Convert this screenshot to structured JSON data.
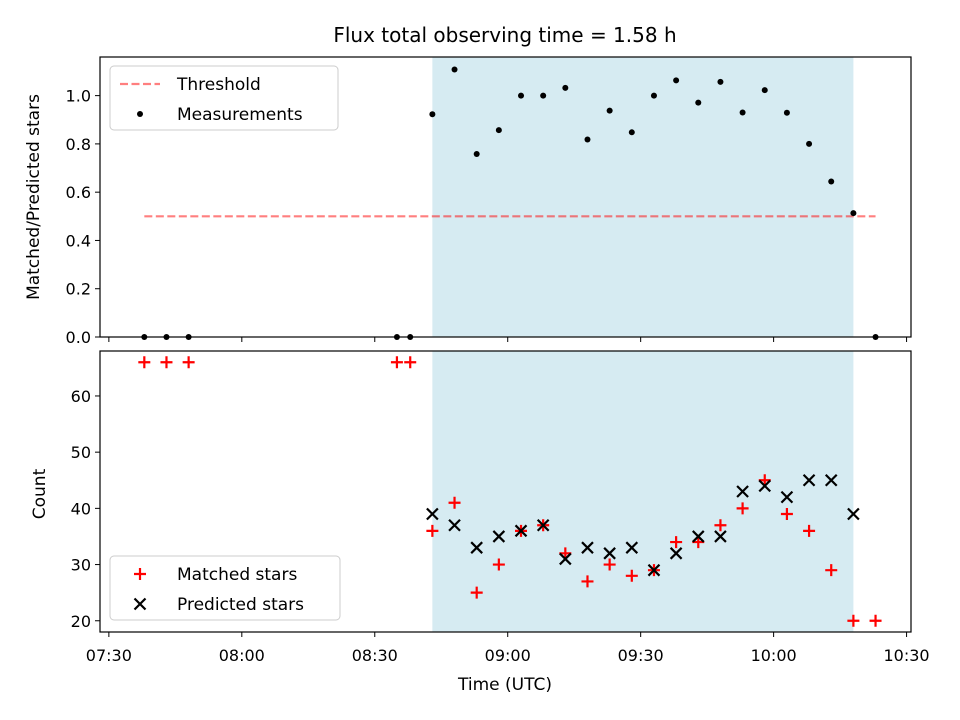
{
  "chart_data": {
    "type": "scatter",
    "title": "Flux total observing time = 1.58 h",
    "xlabel": "Time (UTC)",
    "x_ticks": [
      "07:30",
      "08:00",
      "08:30",
      "09:00",
      "09:30",
      "10:00",
      "10:30"
    ],
    "x_range": [
      "07:28",
      "10:31"
    ],
    "shaded_span": [
      "08:43",
      "10:18"
    ],
    "colors": {
      "shade": "#add8e6",
      "threshold": "#ff0000",
      "matched": "#ff0000",
      "predicted": "#000000",
      "measurements": "#000000"
    },
    "panels": [
      {
        "name": "ratio",
        "ylabel": "Matched/Predicted stars",
        "ylim": [
          0,
          1.16
        ],
        "y_ticks": [
          "0.0",
          "0.2",
          "0.4",
          "0.6",
          "0.8",
          "1.0"
        ],
        "legend_position": "upper left",
        "series": [
          {
            "name": "Threshold",
            "kind": "dashed-line",
            "x": [
              "07:38",
              "10:23"
            ],
            "y": [
              0.5,
              0.5
            ]
          },
          {
            "name": "Measurements",
            "kind": "dot",
            "x": [
              "07:38",
              "07:43",
              "07:48",
              "08:35",
              "08:38",
              "08:43",
              "08:48",
              "08:53",
              "08:58",
              "09:03",
              "09:08",
              "09:13",
              "09:18",
              "09:23",
              "09:28",
              "09:33",
              "09:38",
              "09:43",
              "09:48",
              "09:53",
              "09:58",
              "10:03",
              "10:08",
              "10:13",
              "10:18",
              "10:23"
            ],
            "y": [
              0,
              0,
              0,
              0,
              0,
              0.923,
              1.108,
              0.758,
              0.857,
              1.0,
              1.0,
              1.032,
              0.818,
              0.938,
              0.848,
              1.0,
              1.063,
              0.971,
              1.057,
              0.93,
              1.023,
              0.929,
              0.8,
              0.644,
              0.513,
              0
            ]
          }
        ]
      },
      {
        "name": "count",
        "ylabel": "Count",
        "ylim": [
          18,
          68
        ],
        "y_ticks": [
          "20",
          "30",
          "40",
          "50",
          "60"
        ],
        "legend_position": "lower left",
        "series": [
          {
            "name": "Matched stars",
            "kind": "plus",
            "x": [
              "07:38",
              "07:43",
              "07:48",
              "08:35",
              "08:38",
              "08:43",
              "08:48",
              "08:53",
              "08:58",
              "09:03",
              "09:08",
              "09:13",
              "09:18",
              "09:23",
              "09:28",
              "09:33",
              "09:38",
              "09:43",
              "09:48",
              "09:53",
              "09:58",
              "10:03",
              "10:08",
              "10:13",
              "10:18",
              "10:23"
            ],
            "y": [
              66,
              66,
              66,
              66,
              66,
              36,
              41,
              25,
              30,
              36,
              37,
              32,
              27,
              30,
              28,
              29,
              34,
              34,
              37,
              40,
              45,
              39,
              36,
              29,
              20,
              20
            ]
          },
          {
            "name": "Predicted stars",
            "kind": "cross",
            "x": [
              "08:43",
              "08:48",
              "08:53",
              "08:58",
              "09:03",
              "09:08",
              "09:13",
              "09:18",
              "09:23",
              "09:28",
              "09:33",
              "09:38",
              "09:43",
              "09:48",
              "09:53",
              "09:58",
              "10:03",
              "10:08",
              "10:13",
              "10:18"
            ],
            "y": [
              39,
              37,
              33,
              35,
              36,
              37,
              31,
              33,
              32,
              33,
              29,
              32,
              35,
              35,
              43,
              44,
              42,
              45,
              45,
              39
            ]
          }
        ]
      }
    ]
  }
}
